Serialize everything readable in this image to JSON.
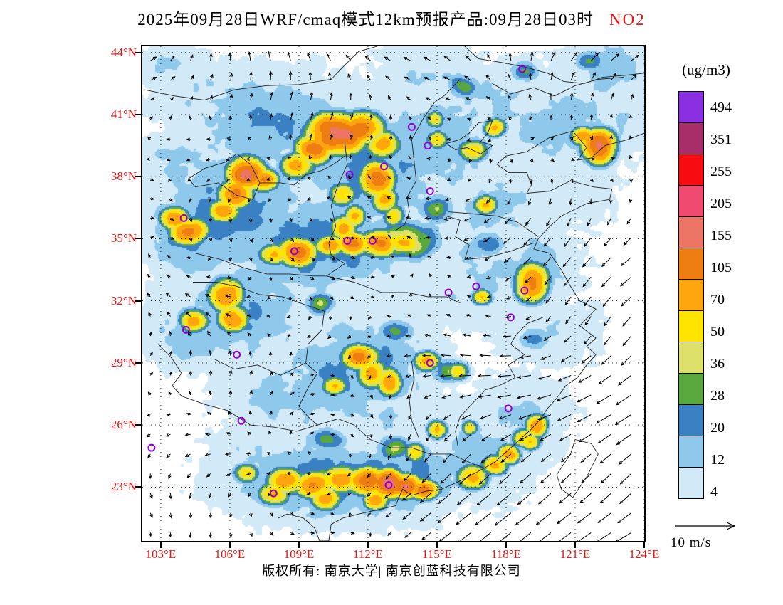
{
  "title": {
    "main": "2025年09月28日WRF/cmaq模式12km预报产品:09月28日03时",
    "species": "NO2"
  },
  "colorbar": {
    "unit_label": "(ug/m3)",
    "tick_labels": [
      "494",
      "351",
      "255",
      "205",
      "155",
      "105",
      "70",
      "50",
      "36",
      "28",
      "20",
      "12",
      "4"
    ]
  },
  "axes": {
    "lat_ticks": [
      "44°N",
      "41°N",
      "38°N",
      "35°N",
      "32°N",
      "29°N",
      "26°N",
      "23°N"
    ],
    "lon_ticks": [
      "103°E",
      "106°E",
      "109°E",
      "112°E",
      "115°E",
      "118°E",
      "121°E",
      "124°E"
    ]
  },
  "wind_legend": {
    "label": "10 m/s"
  },
  "footer": {
    "text": "版权所有: 南京大学| 南京创蓝科技有限公司"
  },
  "colors": {
    "label_red": "#ea1412",
    "station_purple": "#9400d3",
    "grid": "#333333",
    "boundary": "#222222"
  },
  "chart_data": {
    "type": "heatmap",
    "title": "2025年09月28日WRF/cmaq模式12km预报产品:09月28日03时",
    "species": "NO2",
    "unit": "ug/m3",
    "xlabel_suffix": "°E",
    "ylabel_suffix": "°N",
    "xlim": [
      102.2,
      124.0
    ],
    "ylim": [
      20.4,
      44.3
    ],
    "x_ticks": [
      103,
      106,
      109,
      112,
      115,
      118,
      121,
      124
    ],
    "y_ticks": [
      44,
      41,
      38,
      35,
      32,
      29,
      26,
      23
    ],
    "levels": [
      4,
      12,
      20,
      28,
      36,
      50,
      70,
      105,
      155,
      205,
      255,
      351,
      494
    ],
    "level_colors": [
      "#ffffff",
      "#d2e9f8",
      "#8ec9ec",
      "#3a81c4",
      "#58a83e",
      "#dde069",
      "#ffe400",
      "#ffa60e",
      "#ee7d12",
      "#ed7565",
      "#f04a70",
      "#f80c12",
      "#a82e6a",
      "#8b2fe2"
    ],
    "plumes": [
      [
        110.6,
        40.1,
        0.75,
        0.55,
        190
      ],
      [
        111.7,
        40.4,
        0.55,
        0.45,
        150
      ],
      [
        109.6,
        39.4,
        0.5,
        0.45,
        120
      ],
      [
        112.6,
        39.6,
        0.45,
        0.4,
        90
      ],
      [
        108.9,
        38.6,
        0.45,
        0.4,
        85
      ],
      [
        106.7,
        38.2,
        0.5,
        0.45,
        170
      ],
      [
        106.2,
        37.2,
        0.45,
        0.4,
        130
      ],
      [
        105.7,
        36.4,
        0.4,
        0.35,
        90
      ],
      [
        107.4,
        37.9,
        0.4,
        0.35,
        100
      ],
      [
        112.4,
        37.9,
        0.45,
        0.5,
        130
      ],
      [
        112.7,
        36.9,
        0.35,
        0.4,
        90
      ],
      [
        113.1,
        36.2,
        0.3,
        0.35,
        70
      ],
      [
        110.8,
        37.2,
        0.35,
        0.35,
        80
      ],
      [
        104.2,
        35.4,
        0.5,
        0.4,
        120
      ],
      [
        103.6,
        36.0,
        0.4,
        0.35,
        100
      ],
      [
        108.9,
        34.4,
        0.5,
        0.4,
        130
      ],
      [
        107.9,
        34.3,
        0.4,
        0.3,
        80
      ],
      [
        110.3,
        34.7,
        0.4,
        0.3,
        90
      ],
      [
        111.3,
        34.8,
        0.45,
        0.35,
        100
      ],
      [
        112.4,
        34.8,
        0.5,
        0.4,
        110
      ],
      [
        113.6,
        34.9,
        0.45,
        0.35,
        95
      ],
      [
        110.9,
        35.6,
        0.35,
        0.35,
        90
      ],
      [
        111.4,
        36.1,
        0.3,
        0.35,
        75
      ],
      [
        117.5,
        40.4,
        0.3,
        0.28,
        80
      ],
      [
        115.0,
        39.8,
        0.3,
        0.3,
        55
      ],
      [
        114.9,
        40.8,
        0.28,
        0.28,
        50
      ],
      [
        116.5,
        39.3,
        0.4,
        0.35,
        65
      ],
      [
        122.0,
        39.5,
        0.45,
        0.5,
        150
      ],
      [
        121.3,
        40.0,
        0.35,
        0.3,
        80
      ],
      [
        117.1,
        36.7,
        0.35,
        0.3,
        60
      ],
      [
        119.1,
        32.9,
        0.45,
        0.55,
        120
      ],
      [
        116.9,
        32.2,
        0.3,
        0.25,
        70
      ],
      [
        105.8,
        32.3,
        0.45,
        0.5,
        110
      ],
      [
        106.1,
        31.2,
        0.4,
        0.4,
        100
      ],
      [
        104.4,
        31.1,
        0.4,
        0.35,
        80
      ],
      [
        111.6,
        29.3,
        0.5,
        0.4,
        110
      ],
      [
        112.1,
        28.5,
        0.4,
        0.45,
        90
      ],
      [
        112.9,
        28.1,
        0.35,
        0.45,
        85
      ],
      [
        110.5,
        27.9,
        0.35,
        0.3,
        60
      ],
      [
        114.5,
        29.1,
        0.35,
        0.3,
        75
      ],
      [
        115.9,
        28.6,
        0.3,
        0.3,
        55
      ],
      [
        108.4,
        23.3,
        0.5,
        0.4,
        100
      ],
      [
        109.6,
        23.1,
        0.55,
        0.4,
        110
      ],
      [
        110.8,
        23.4,
        0.5,
        0.4,
        100
      ],
      [
        111.9,
        23.3,
        0.55,
        0.4,
        130
      ],
      [
        112.9,
        23.2,
        0.5,
        0.4,
        170
      ],
      [
        113.6,
        23.1,
        0.4,
        0.35,
        150
      ],
      [
        114.4,
        22.9,
        0.4,
        0.3,
        110
      ],
      [
        110.1,
        22.5,
        0.4,
        0.35,
        90
      ],
      [
        107.9,
        22.7,
        0.4,
        0.35,
        85
      ],
      [
        106.7,
        23.7,
        0.35,
        0.3,
        60
      ],
      [
        112.3,
        22.4,
        0.35,
        0.3,
        90
      ],
      [
        116.5,
        23.5,
        0.4,
        0.35,
        100
      ],
      [
        117.5,
        24.1,
        0.35,
        0.3,
        80
      ],
      [
        118.1,
        24.6,
        0.3,
        0.3,
        90
      ],
      [
        119.3,
        26.0,
        0.3,
        0.35,
        85
      ],
      [
        118.7,
        25.4,
        0.3,
        0.3,
        70
      ],
      [
        119.0,
        25.2,
        0.3,
        0.25,
        70
      ],
      [
        115.0,
        25.8,
        0.3,
        0.3,
        60
      ],
      [
        114.0,
        24.7,
        0.3,
        0.3,
        55
      ],
      [
        116.4,
        25.9,
        0.25,
        0.25,
        50
      ],
      [
        108.0,
        40.5,
        2.8,
        1.8,
        18
      ],
      [
        112.0,
        38.5,
        2.4,
        2.4,
        20
      ],
      [
        106.0,
        36.5,
        2.4,
        2.0,
        22
      ],
      [
        110.0,
        34.8,
        2.6,
        1.6,
        24
      ],
      [
        104.5,
        35.3,
        1.5,
        1.5,
        24
      ],
      [
        115.0,
        39.5,
        2.2,
        2.0,
        16
      ],
      [
        117.5,
        41.5,
        2.0,
        1.5,
        12
      ],
      [
        120.5,
        40.5,
        2.0,
        1.6,
        16
      ],
      [
        122.5,
        43.2,
        1.6,
        1.2,
        14
      ],
      [
        114.5,
        42.8,
        1.8,
        1.2,
        10
      ],
      [
        105.0,
        41.5,
        2.0,
        1.2,
        10
      ],
      [
        104.5,
        42.5,
        1.5,
        1.1,
        10
      ],
      [
        103.2,
        43.4,
        1.0,
        0.8,
        12
      ],
      [
        103.8,
        38.6,
        1.2,
        1.0,
        16
      ],
      [
        106.5,
        31.5,
        2.2,
        1.8,
        18
      ],
      [
        104.3,
        30.5,
        1.4,
        1.2,
        16
      ],
      [
        111.5,
        28.8,
        2.2,
        1.8,
        22
      ],
      [
        108.5,
        27.3,
        2.0,
        1.5,
        14
      ],
      [
        110.5,
        23.3,
        3.0,
        1.3,
        24
      ],
      [
        113.5,
        23.5,
        2.0,
        1.3,
        22
      ],
      [
        116.5,
        24.8,
        2.0,
        1.8,
        14
      ],
      [
        118.5,
        26.3,
        1.6,
        1.6,
        12
      ],
      [
        120.0,
        30.5,
        1.5,
        1.2,
        10
      ],
      [
        117.0,
        33.5,
        2.5,
        2.0,
        12
      ],
      [
        119.0,
        33.5,
        1.5,
        1.5,
        14
      ],
      [
        113.5,
        31.5,
        2.0,
        1.5,
        8
      ],
      [
        121.0,
        37.5,
        1.5,
        1.5,
        8
      ],
      [
        109.5,
        31.5,
        1.5,
        1.2,
        8
      ],
      [
        123.0,
        41.0,
        1.5,
        1.5,
        10
      ],
      [
        118.5,
        30.5,
        1.5,
        1.2,
        6
      ],
      [
        112.5,
        26.5,
        1.8,
        1.5,
        10
      ],
      [
        106.8,
        24.5,
        1.5,
        1.2,
        10
      ],
      [
        117.5,
        36.5,
        1.5,
        1.2,
        14
      ],
      [
        116.1,
        42.4,
        0.5,
        0.4,
        30
      ],
      [
        118.8,
        43.2,
        0.45,
        0.4,
        26
      ],
      [
        121.6,
        43.6,
        0.5,
        0.4,
        24
      ],
      [
        113.7,
        35.0,
        0.8,
        0.6,
        55
      ],
      [
        117.2,
        34.8,
        0.5,
        0.4,
        30
      ],
      [
        115.0,
        36.5,
        0.6,
        0.5,
        28
      ],
      [
        109.8,
        31.9,
        0.5,
        0.4,
        30
      ],
      [
        113.2,
        30.5,
        0.6,
        0.4,
        26
      ],
      [
        115.5,
        28.6,
        0.5,
        0.4,
        30
      ],
      [
        119.2,
        30.2,
        0.5,
        0.4,
        26
      ],
      [
        113.1,
        24.9,
        0.5,
        0.4,
        40
      ],
      [
        110.2,
        25.3,
        0.6,
        0.4,
        30
      ]
    ],
    "stations": [
      [
        118.7,
        43.2
      ],
      [
        113.9,
        40.4
      ],
      [
        114.6,
        39.5
      ],
      [
        111.2,
        38.1
      ],
      [
        112.7,
        38.5
      ],
      [
        114.7,
        37.3
      ],
      [
        104.0,
        36.0
      ],
      [
        111.1,
        34.9
      ],
      [
        112.2,
        34.9
      ],
      [
        108.8,
        34.4
      ],
      [
        115.5,
        32.4
      ],
      [
        116.7,
        32.7
      ],
      [
        118.8,
        32.5
      ],
      [
        118.2,
        31.2
      ],
      [
        104.1,
        30.6
      ],
      [
        106.3,
        29.4
      ],
      [
        114.7,
        29.0
      ],
      [
        118.1,
        26.8
      ],
      [
        106.5,
        26.2
      ],
      [
        102.6,
        24.9
      ],
      [
        107.9,
        22.7
      ],
      [
        112.9,
        23.1
      ]
    ]
  }
}
